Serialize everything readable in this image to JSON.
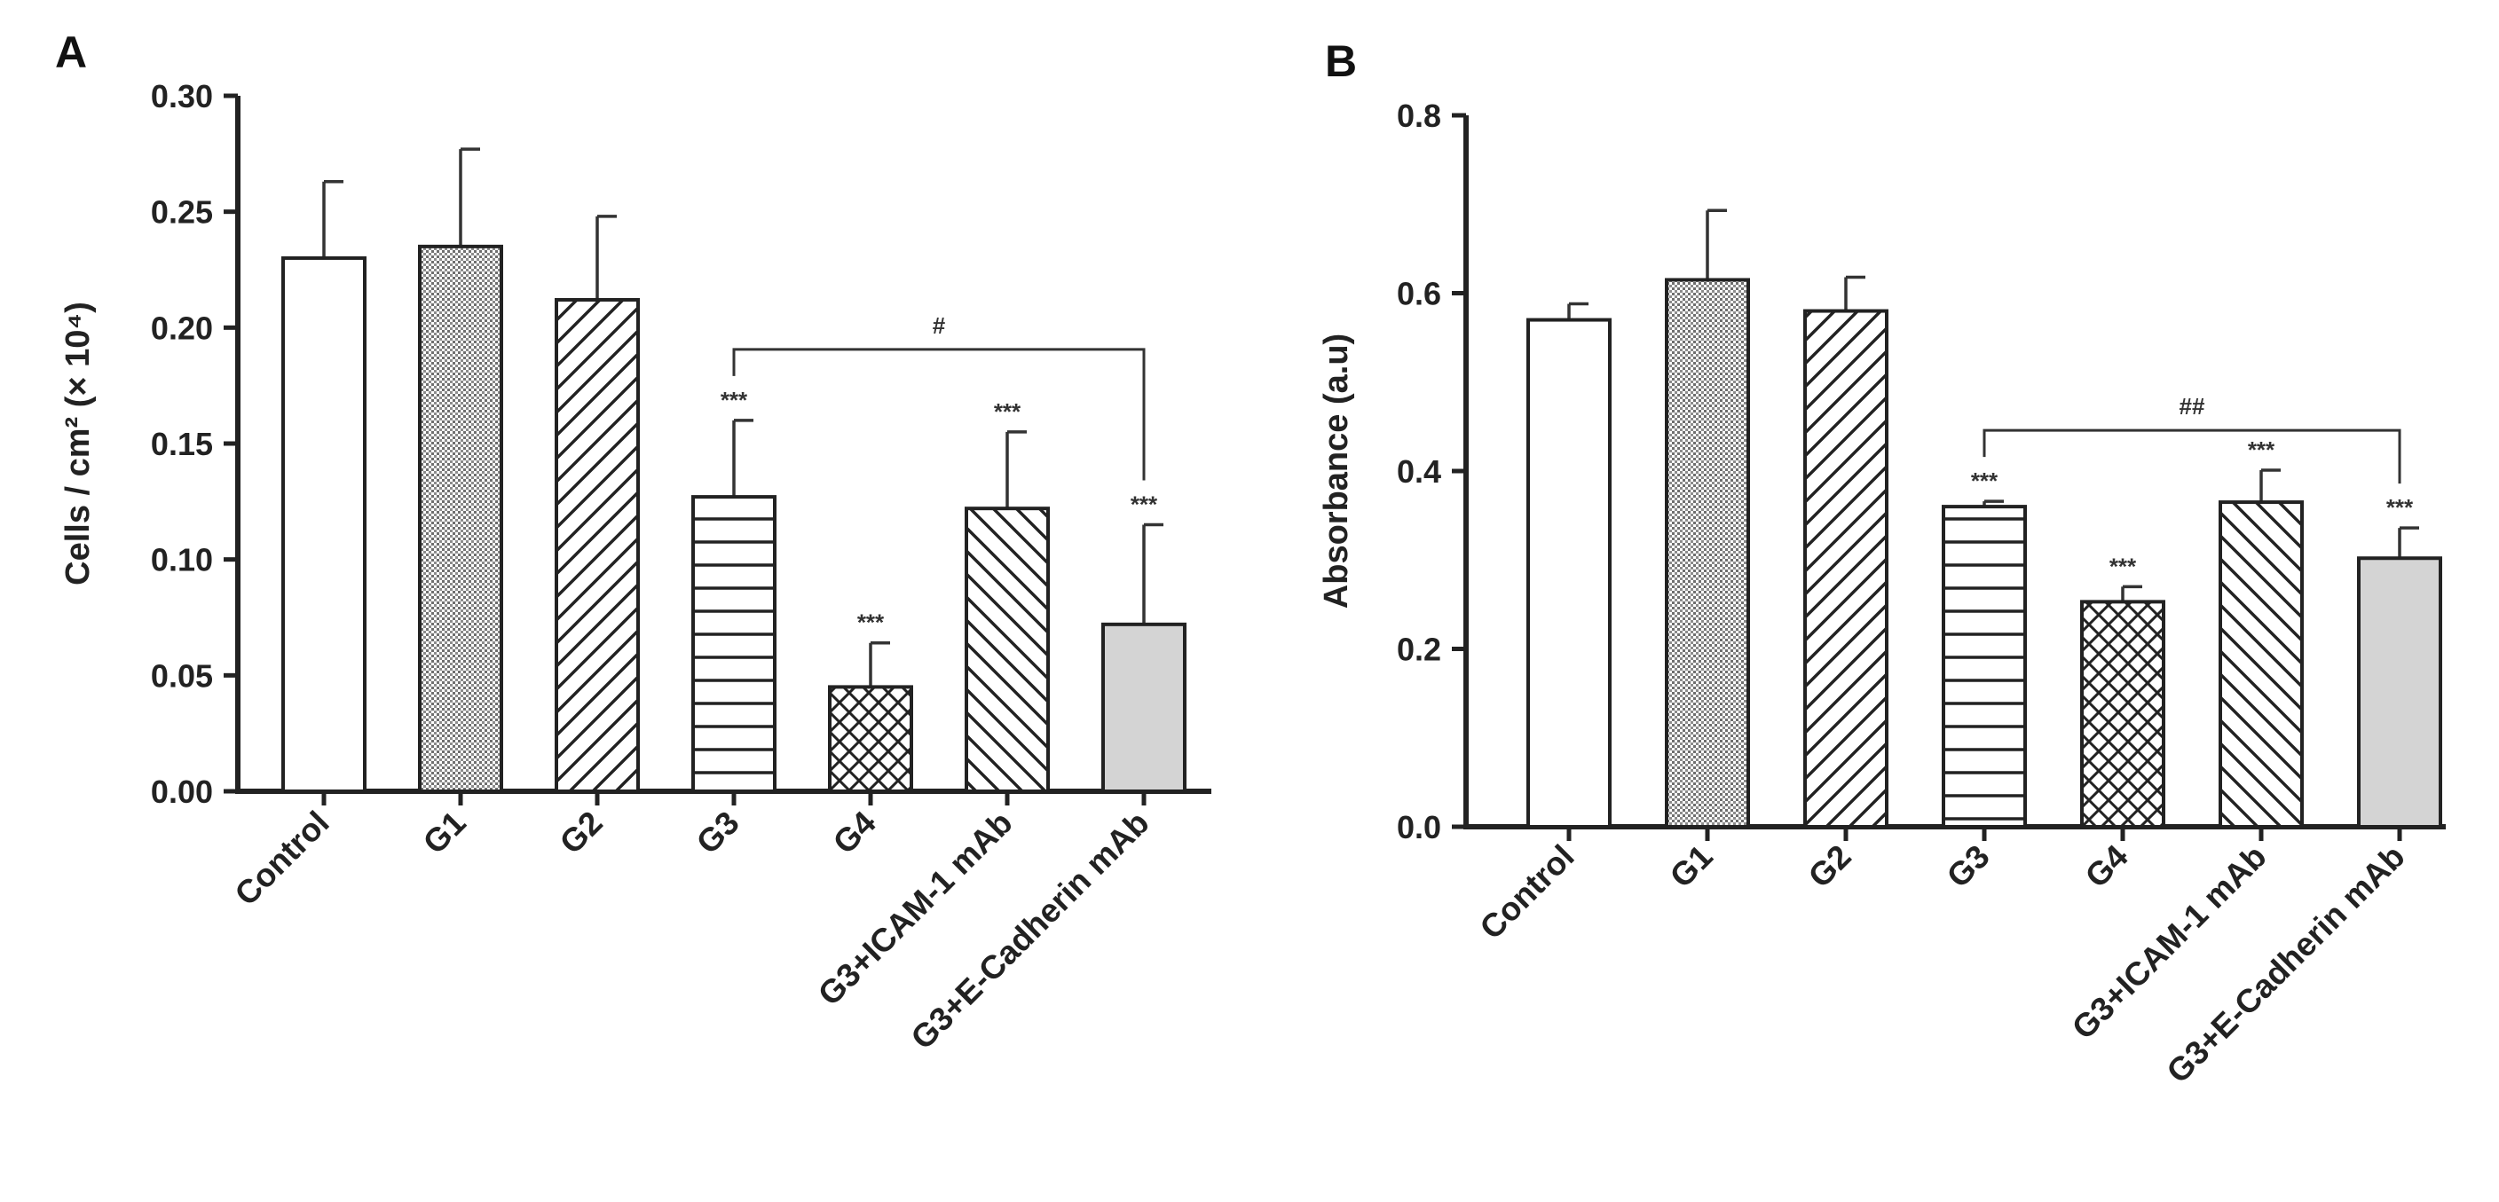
{
  "chart_data": [
    {
      "type": "bar",
      "panel": "A",
      "ylabel": "Cells / cm² (× 10⁴)",
      "ylim": [
        0.0,
        0.3
      ],
      "yticks": [
        "0.00",
        "0.05",
        "0.10",
        "0.15",
        "0.20",
        "0.25",
        "0.30"
      ],
      "categories": [
        "Control",
        "G1",
        "G2",
        "G3",
        "G4",
        "G3+ICAM-1 mAb",
        "G3+E-Cadherin mAb"
      ],
      "values": [
        0.23,
        0.235,
        0.212,
        0.127,
        0.045,
        0.122,
        0.072
      ],
      "errors": [
        0.033,
        0.042,
        0.036,
        0.033,
        0.019,
        0.033,
        0.043
      ],
      "patterns": [
        "white",
        "dots",
        "diag-up",
        "horizontal",
        "crosshatch",
        "diag-down",
        "gray"
      ],
      "significance": [
        "",
        "",
        "",
        "***",
        "***",
        "***",
        "***"
      ],
      "bracket": {
        "from": "G3",
        "to": "G3+E-Cadherin mAb",
        "label": "#"
      }
    },
    {
      "type": "bar",
      "panel": "B",
      "ylabel": "Absorbance (a.u)",
      "ylim": [
        0.0,
        0.8
      ],
      "yticks": [
        "0.0",
        "0.2",
        "0.4",
        "0.6",
        "0.8"
      ],
      "categories": [
        "Control",
        "G1",
        "G2",
        "G3",
        "G4",
        "G3+ICAM-1 mAb",
        "G3+E-Cadherin mAb"
      ],
      "values": [
        0.57,
        0.615,
        0.58,
        0.36,
        0.253,
        0.365,
        0.302
      ],
      "errors": [
        0.018,
        0.078,
        0.038,
        0.006,
        0.017,
        0.036,
        0.034
      ],
      "patterns": [
        "white",
        "dots",
        "diag-up",
        "horizontal",
        "crosshatch",
        "diag-down",
        "gray"
      ],
      "significance": [
        "",
        "",
        "",
        "***",
        "***",
        "***",
        "***"
      ],
      "bracket": {
        "from": "G3",
        "to": "G3+E-Cadherin mAb",
        "label": "##"
      }
    }
  ],
  "colors": {
    "axis": "#222222",
    "gray_fill": "#d4d4d4",
    "dot_fill": "#8a8a8a"
  }
}
